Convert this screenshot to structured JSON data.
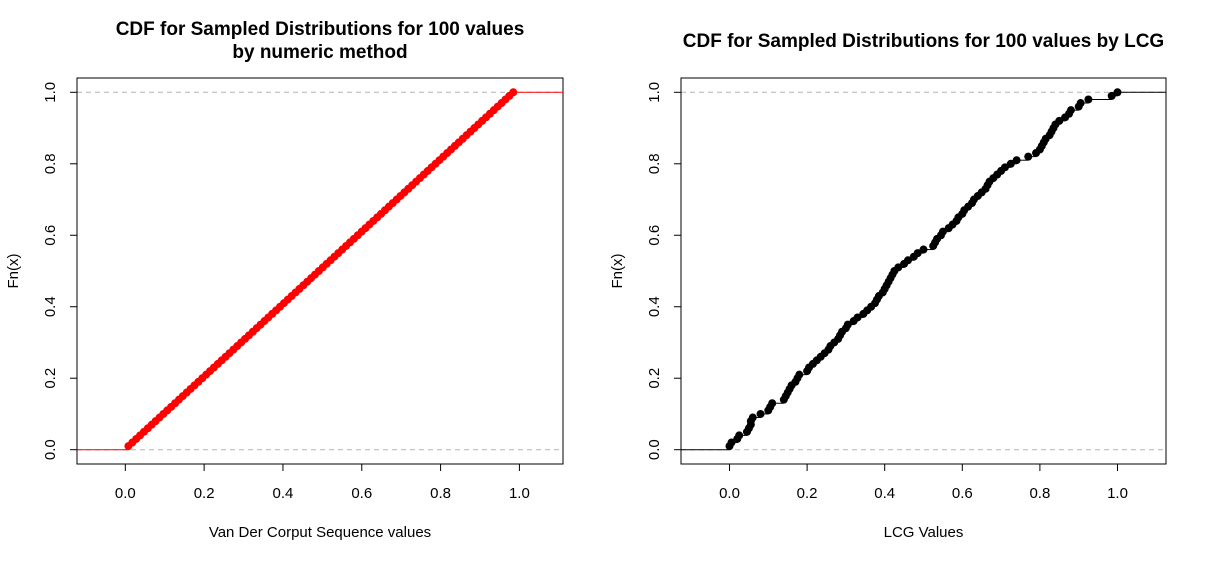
{
  "chart_data": [
    {
      "type": "scatter",
      "title_lines": [
        "CDF for Sampled Distributions for 100 values",
        "by numeric method"
      ],
      "xlabel": "Van Der Corput Sequence values",
      "ylabel": "Fn(x)",
      "xlim": [
        -0.1226,
        1.1106
      ],
      "ylim": [
        -0.04,
        1.04
      ],
      "xticks": [
        "0.0",
        "0.2",
        "0.4",
        "0.6",
        "0.8",
        "1.0"
      ],
      "yticks": [
        "0.0",
        "0.2",
        "0.4",
        "0.6",
        "0.8",
        "1.0"
      ],
      "reference_lines": [
        0,
        1
      ],
      "color": "#ff0000",
      "distribution": "uniform-sequence",
      "n": 100,
      "x_range": [
        0.00781,
        0.98438
      ],
      "grid": false,
      "legend": "none"
    },
    {
      "type": "scatter",
      "title_lines": [
        "CDF for Sampled Distributions for 100 values by LCG"
      ],
      "xlabel": "LCG Values",
      "ylabel": "Fn(x)",
      "xlim": [
        -0.125,
        1.125
      ],
      "ylim": [
        -0.04,
        1.04
      ],
      "xticks": [
        "0.0",
        "0.2",
        "0.4",
        "0.6",
        "0.8",
        "1.0"
      ],
      "yticks": [
        "0.0",
        "0.2",
        "0.4",
        "0.6",
        "0.8",
        "1.0"
      ],
      "reference_lines": [
        0,
        1
      ],
      "color": "#000000",
      "distribution": "ecdf",
      "n": 100,
      "x": [
        0.0,
        0.005,
        0.02,
        0.025,
        0.045,
        0.05,
        0.055,
        0.055,
        0.06,
        0.08,
        0.1,
        0.105,
        0.11,
        0.14,
        0.145,
        0.15,
        0.155,
        0.16,
        0.17,
        0.175,
        0.18,
        0.2,
        0.205,
        0.215,
        0.225,
        0.235,
        0.245,
        0.255,
        0.26,
        0.27,
        0.28,
        0.285,
        0.29,
        0.3,
        0.305,
        0.32,
        0.33,
        0.345,
        0.355,
        0.365,
        0.375,
        0.38,
        0.385,
        0.395,
        0.4,
        0.405,
        0.41,
        0.415,
        0.42,
        0.425,
        0.435,
        0.45,
        0.46,
        0.475,
        0.485,
        0.5,
        0.525,
        0.53,
        0.535,
        0.545,
        0.55,
        0.565,
        0.575,
        0.585,
        0.59,
        0.6,
        0.605,
        0.615,
        0.625,
        0.63,
        0.64,
        0.65,
        0.66,
        0.665,
        0.67,
        0.68,
        0.69,
        0.7,
        0.71,
        0.725,
        0.74,
        0.77,
        0.79,
        0.8,
        0.805,
        0.81,
        0.815,
        0.825,
        0.83,
        0.835,
        0.84,
        0.85,
        0.865,
        0.875,
        0.88,
        0.9,
        0.905,
        0.925,
        0.985,
        1.0
      ],
      "grid": false,
      "legend": "none"
    }
  ]
}
